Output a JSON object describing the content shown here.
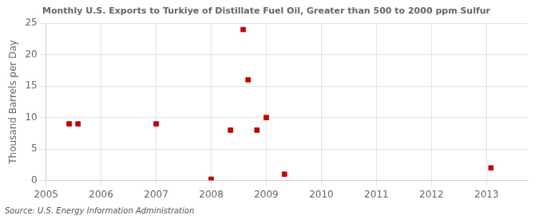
{
  "chart_data": {
    "type": "scatter",
    "title": "Monthly U.S. Exports to Turkiye of Distillate Fuel Oil, Greater than 500 to 2000 ppm Sulfur",
    "y_label": "Thousand Barrels per Day",
    "annotations": [
      "Source: U.S. Energy Information Administration"
    ],
    "color": "#cc0000",
    "marker": "square",
    "x": [
      2005.42,
      2005.58,
      2007.0,
      2008.0,
      2008.35,
      2008.58,
      2008.67,
      2008.83,
      2009.0,
      2009.33,
      2013.08
    ],
    "values": [
      9.0,
      9.0,
      9.0,
      0.2,
      8.0,
      24.0,
      16.0,
      8.0,
      10.0,
      1.0,
      2.0
    ],
    "xlim": [
      2005,
      2013.75
    ],
    "xticks": [
      2005,
      2006,
      2007,
      2008,
      2009,
      2010,
      2011,
      2012,
      2013
    ],
    "ylim": [
      0,
      25
    ],
    "yticks": [
      0,
      5,
      10,
      15,
      20,
      25
    ],
    "grid": true
  }
}
